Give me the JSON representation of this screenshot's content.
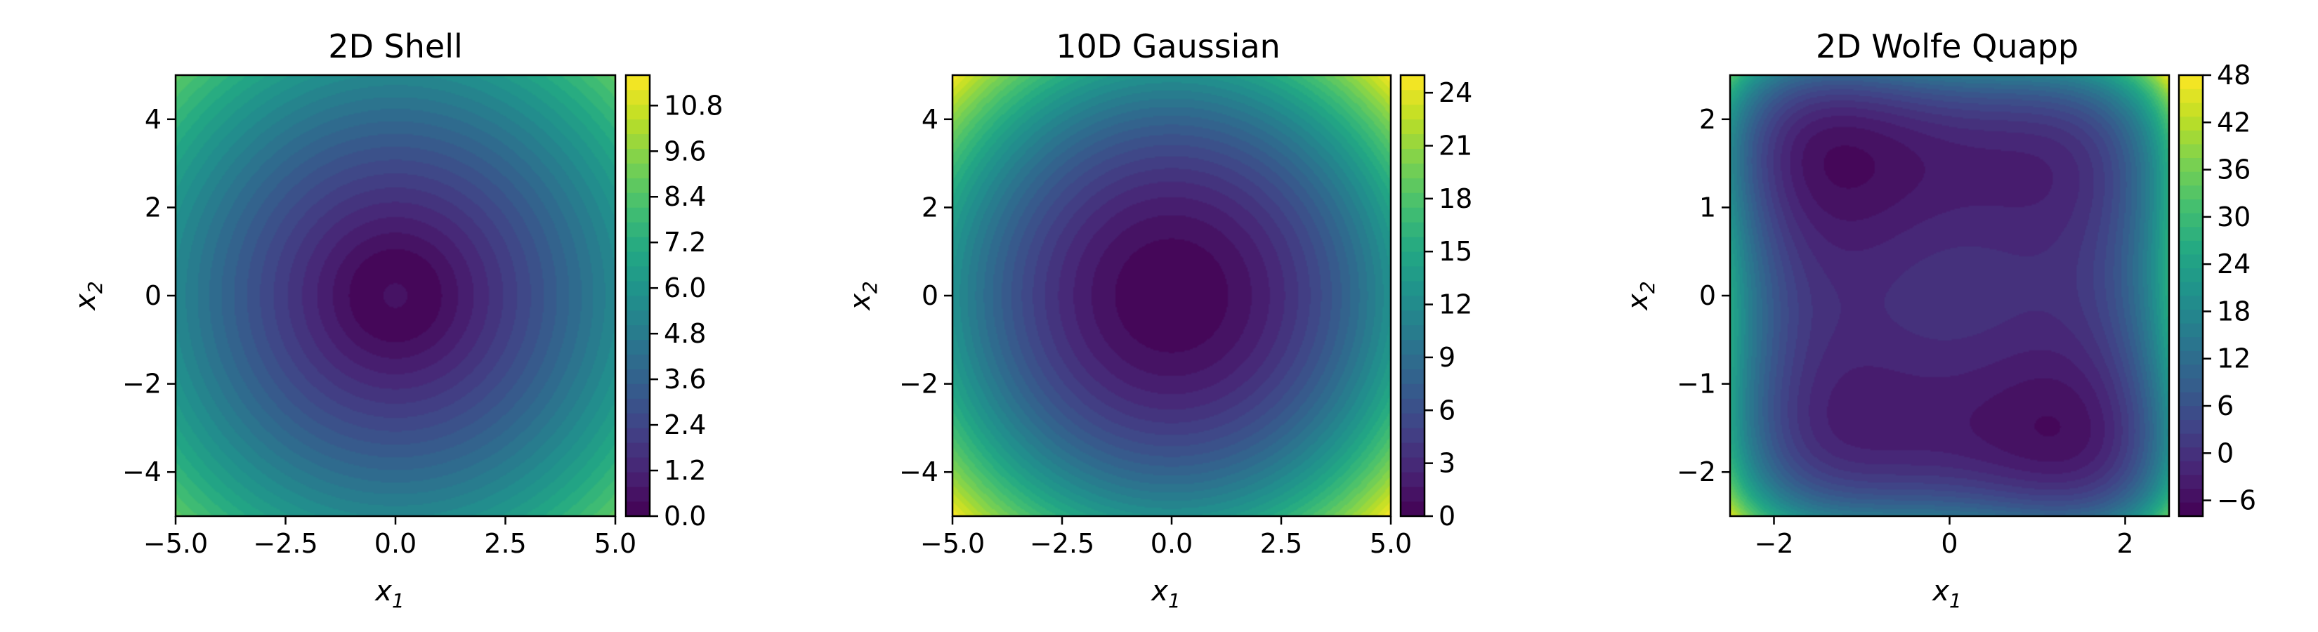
{
  "chart_data": [
    {
      "type": "contour",
      "title": "2D Shell",
      "xlabel": "x",
      "xlabel_sub": "1",
      "ylabel": "x",
      "ylabel_sub": "2",
      "xlim": [
        -5.0,
        5.0
      ],
      "ylim": [
        -5.0,
        5.0
      ],
      "xticks": [
        "−5.0",
        "−2.5",
        "0.0",
        "2.5",
        "5.0"
      ],
      "xtick_values": [
        -5.0,
        -2.5,
        0.0,
        2.5,
        5.0
      ],
      "yticks": [
        "−4",
        "−2",
        "0",
        "2",
        "4"
      ],
      "ytick_values": [
        -4,
        -2,
        0,
        2,
        4
      ],
      "colorbar": {
        "min": 0.0,
        "max": 11.6,
        "ticks": [
          "0.0",
          "1.2",
          "2.4",
          "3.6",
          "4.8",
          "6.0",
          "7.2",
          "8.4",
          "9.6",
          "10.8"
        ],
        "tick_values": [
          0.0,
          1.2,
          2.4,
          3.6,
          4.8,
          6.0,
          7.2,
          8.4,
          9.6,
          10.8
        ]
      },
      "colormap": "viridis",
      "grid": false
    },
    {
      "type": "contour",
      "title": "10D Gaussian",
      "xlabel": "x",
      "xlabel_sub": "1",
      "ylabel": "x",
      "ylabel_sub": "2",
      "xlim": [
        -5.0,
        5.0
      ],
      "ylim": [
        -5.0,
        5.0
      ],
      "xticks": [
        "−5.0",
        "−2.5",
        "0.0",
        "2.5",
        "5.0"
      ],
      "xtick_values": [
        -5.0,
        -2.5,
        0.0,
        2.5,
        5.0
      ],
      "yticks": [
        "−4",
        "−2",
        "0",
        "2",
        "4"
      ],
      "ytick_values": [
        -4,
        -2,
        0,
        2,
        4
      ],
      "colorbar": {
        "min": 0,
        "max": 25,
        "ticks": [
          "0",
          "3",
          "6",
          "9",
          "12",
          "15",
          "18",
          "21",
          "24"
        ],
        "tick_values": [
          0,
          3,
          6,
          9,
          12,
          15,
          18,
          21,
          24
        ]
      },
      "colormap": "viridis",
      "grid": false
    },
    {
      "type": "contour",
      "title": "2D Wolfe Quapp",
      "xlabel": "x",
      "xlabel_sub": "1",
      "ylabel": "x",
      "ylabel_sub": "2",
      "xlim": [
        -2.5,
        2.5
      ],
      "ylim": [
        -2.5,
        2.5
      ],
      "xticks": [
        "−2",
        "0",
        "2"
      ],
      "xtick_values": [
        -2,
        0,
        2
      ],
      "yticks": [
        "−2",
        "−1",
        "0",
        "1",
        "2"
      ],
      "ytick_values": [
        -2,
        -1,
        0,
        1,
        2
      ],
      "colorbar": {
        "min": -8,
        "max": 48,
        "ticks": [
          "−6",
          "0",
          "6",
          "12",
          "18",
          "24",
          "30",
          "36",
          "42",
          "48"
        ],
        "tick_values": [
          -6,
          0,
          6,
          12,
          18,
          24,
          30,
          36,
          42,
          48
        ]
      },
      "colormap": "viridis",
      "grid": false
    }
  ]
}
